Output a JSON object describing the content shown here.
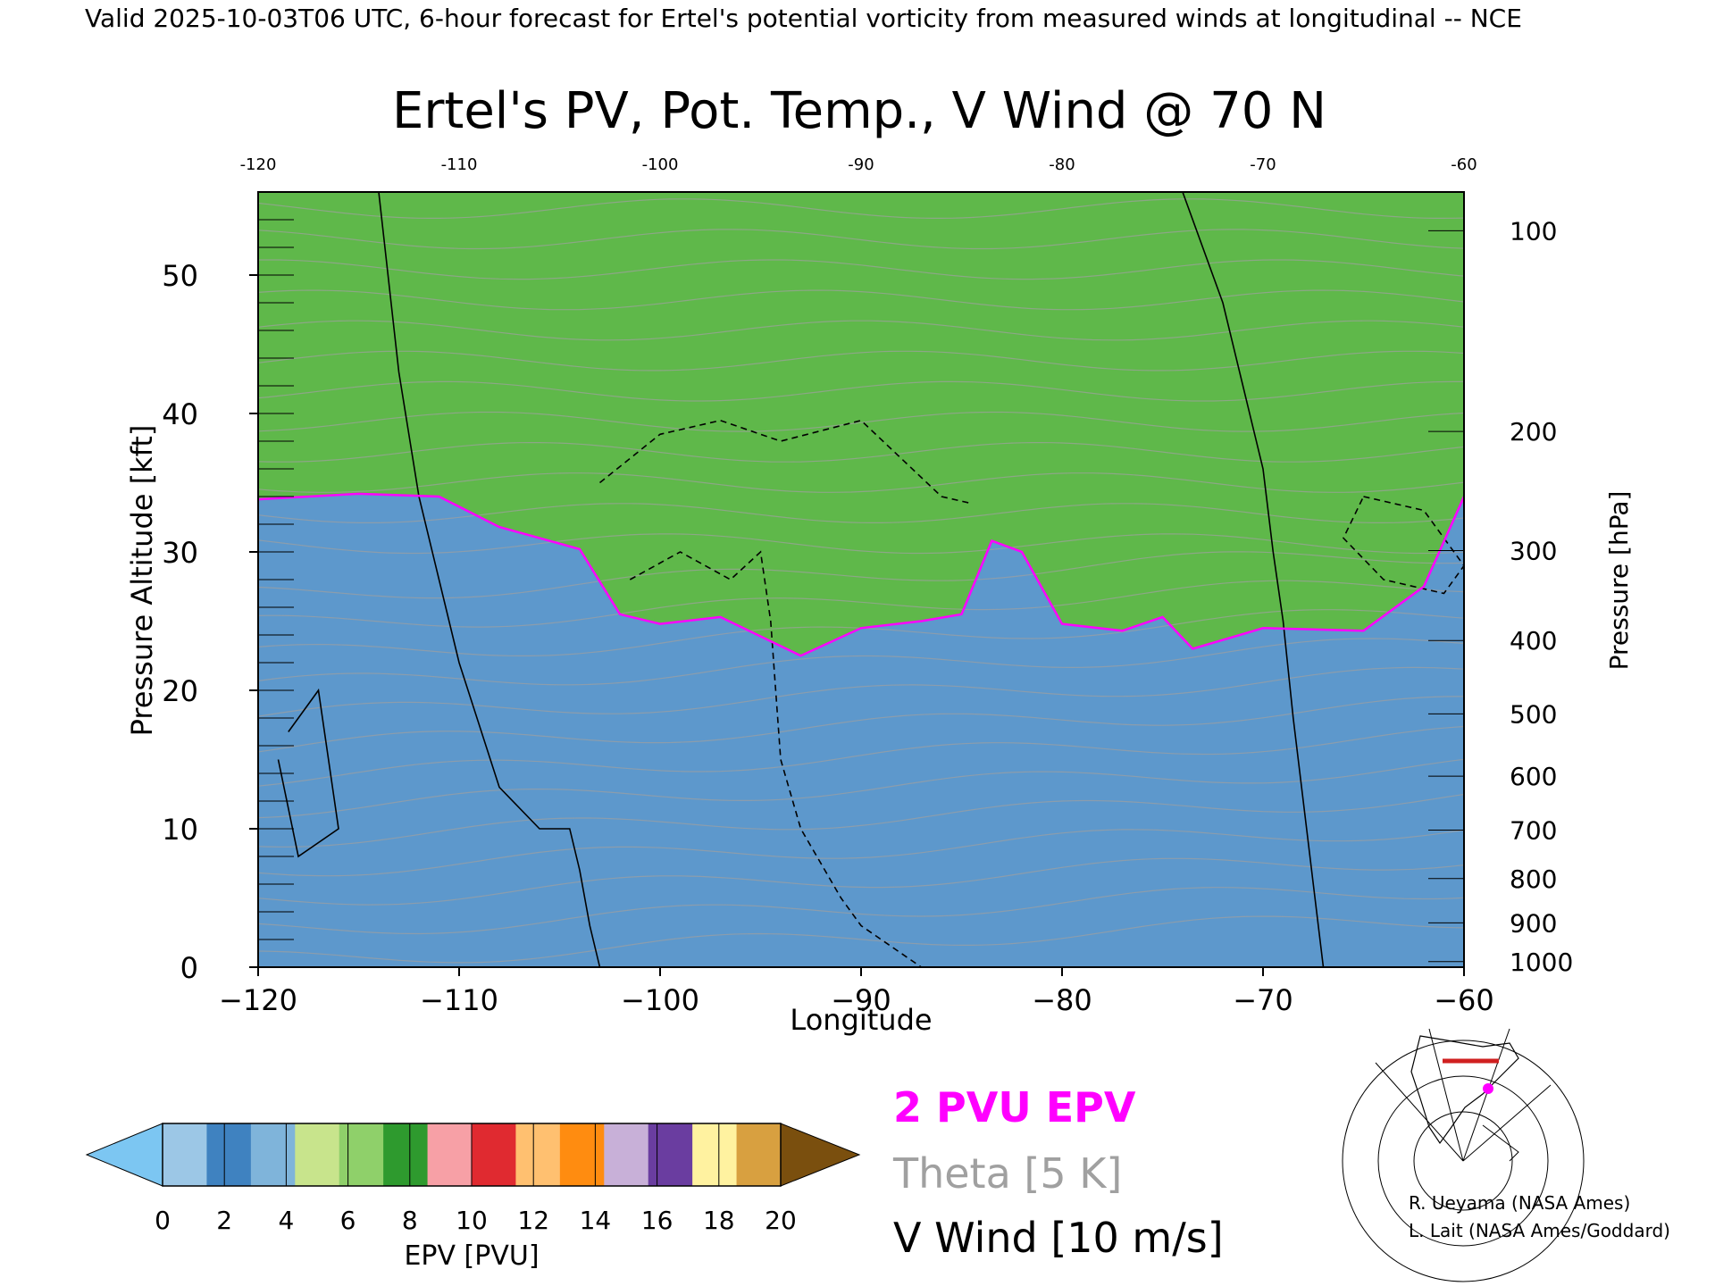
{
  "header": {
    "valid_line": "Valid 2025-10-03T06 UTC, 6-hour forecast for Ertel's potential vorticity from measured winds at longitudinal -- NCE"
  },
  "chart_data": {
    "type": "heatmap",
    "title": "Ertel's PV, Pot. Temp., V Wind @ 70 N",
    "xlabel": "Longitude",
    "ylabel": "Pressure Altitude [kft]",
    "y2label": "Pressure [hPa]",
    "xlim": [
      -120,
      -60
    ],
    "ylim": [
      0,
      56
    ],
    "x_ticks": [
      -120,
      -110,
      -100,
      -90,
      -80,
      -70,
      -60
    ],
    "y_ticks": [
      0,
      10,
      20,
      30,
      40,
      50
    ],
    "pressure_ticks": [
      {
        "hpa": 100,
        "kft": 53.2
      },
      {
        "hpa": 200,
        "kft": 38.7
      },
      {
        "hpa": 300,
        "kft": 30.1
      },
      {
        "hpa": 400,
        "kft": 23.6
      },
      {
        "hpa": 500,
        "kft": 18.3
      },
      {
        "hpa": 600,
        "kft": 13.8
      },
      {
        "hpa": 700,
        "kft": 9.9
      },
      {
        "hpa": 800,
        "kft": 6.4
      },
      {
        "hpa": 900,
        "kft": 3.2
      },
      {
        "hpa": 1000,
        "kft": 0.4
      }
    ],
    "colorbar": {
      "label": "EPV [PVU]",
      "ticks": [
        0,
        2,
        4,
        6,
        8,
        10,
        12,
        14,
        16,
        18,
        20
      ],
      "under_color": "#7cc6f2",
      "over_color": "#7a4f0e",
      "stops": [
        "#9cc7e6",
        "#3f82c0",
        "#7fb4da",
        "#c8e48c",
        "#8fd06a",
        "#2e9a2e",
        "#f7a0a6",
        "#e02a30",
        "#ffc070",
        "#ff8c10",
        "#c8b0d8",
        "#6a3da0",
        "#fff2a0",
        "#d8a040"
      ]
    },
    "legend": {
      "epv_line": "2 PVU EPV",
      "theta": "Theta [5 K]",
      "vwind": "V Wind [10 m/s]",
      "epv_line_color": "#ff00ff",
      "theta_color": "#a0a0a0"
    },
    "epv_2pvu_tropopause": {
      "x": [
        -120,
        -115,
        -111,
        -108,
        -104,
        -102,
        -100,
        -97,
        -93,
        -90,
        -87,
        -85,
        -83.5,
        -82,
        -80,
        -77,
        -75,
        -73.5,
        -70,
        -65,
        -62,
        -60
      ],
      "y": [
        33.8,
        34.2,
        34.0,
        31.8,
        30.2,
        25.5,
        24.8,
        25.3,
        22.5,
        24.5,
        25.0,
        25.5,
        30.8,
        30.0,
        24.8,
        24.3,
        25.3,
        23.0,
        24.5,
        24.3,
        27.5,
        34.0
      ]
    },
    "vwind_contours": [
      {
        "level": 0,
        "x": [
          -114,
          -113,
          -112,
          -111,
          -110,
          -108,
          -106,
          -104.5,
          -104,
          -103.5,
          -103
        ],
        "y": [
          56,
          43,
          34,
          28,
          22,
          13,
          10,
          10,
          7,
          3,
          0
        ]
      },
      {
        "level": 0,
        "x": [
          -74,
          -72,
          -71,
          -70,
          -69.5,
          -69,
          -68.5,
          -67
        ],
        "y": [
          56,
          48,
          42,
          36,
          30,
          25,
          18,
          0
        ]
      },
      {
        "level": 10,
        "x": [
          -103,
          -100,
          -97,
          -94,
          -90,
          -86,
          -84.5
        ],
        "y": [
          35,
          38.5,
          39.5,
          38,
          39.5,
          34,
          33.5
        ]
      },
      {
        "level": 10,
        "x": [
          -101.5,
          -99,
          -96.5,
          -95,
          -94.5,
          -94,
          -93,
          -91,
          -90,
          -89,
          -87
        ],
        "y": [
          28,
          30,
          28,
          30,
          25,
          15,
          10,
          5,
          3,
          2,
          0
        ]
      },
      {
        "level": 0,
        "x": [
          -118.5,
          -117,
          -116,
          -118,
          -119
        ],
        "y": [
          17,
          20,
          10,
          8,
          15
        ]
      },
      {
        "level": 10,
        "x": [
          -65,
          -62,
          -60,
          -61,
          -64,
          -66,
          -65
        ],
        "y": [
          34,
          33,
          29,
          27,
          28,
          31,
          34
        ]
      }
    ],
    "pv_layers": [
      {
        "pvu_range": [
          0,
          2
        ],
        "color": "#5d98cc"
      },
      {
        "pvu_range": [
          2,
          6
        ],
        "color": "#5fb84a"
      },
      {
        "pvu_range": [
          6,
          10
        ],
        "color": "#e43a3a"
      },
      {
        "pvu_range": [
          10,
          14
        ],
        "color": "#ffa030"
      },
      {
        "pvu_range": [
          14,
          18
        ],
        "color": "#8a5ab8"
      },
      {
        "pvu_range": [
          18,
          20
        ],
        "color": "#fff2a0"
      },
      {
        "pvu_range": [
          20,
          30
        ],
        "color": "#7a4f0e"
      }
    ]
  },
  "credits": {
    "line1": "R. Ueyama (NASA Ames)",
    "line2": "L. Lait (NASA Ames/Goddard)"
  }
}
